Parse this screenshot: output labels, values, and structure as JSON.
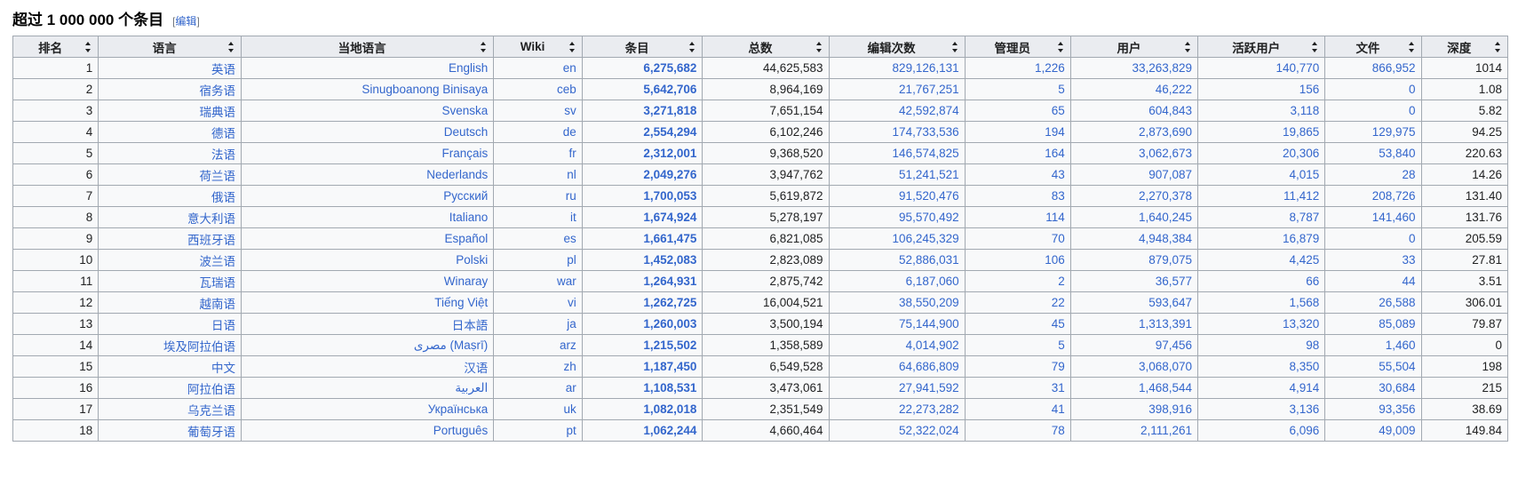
{
  "heading": {
    "title": "超过 1 000 000 个条目",
    "edit_open": "[",
    "edit_label": "编辑",
    "edit_close": "]"
  },
  "columns": [
    "排名",
    "语言",
    "当地语言",
    "Wiki",
    "条目",
    "总数",
    "编辑次数",
    "管理员",
    "用户",
    "活跃用户",
    "文件",
    "深度"
  ],
  "rows": [
    {
      "rank": "1",
      "language": "英语",
      "local": "English",
      "wiki": "en",
      "articles": "6,275,682",
      "total": "44,625,583",
      "edits": "829,126,131",
      "admins": "1,226",
      "users": "33,263,829",
      "active": "140,770",
      "files": "866,952",
      "depth": "1014"
    },
    {
      "rank": "2",
      "language": "宿务语",
      "local": "Sinugboanong Binisaya",
      "wiki": "ceb",
      "articles": "5,642,706",
      "total": "8,964,169",
      "edits": "21,767,251",
      "admins": "5",
      "users": "46,222",
      "active": "156",
      "files": "0",
      "depth": "1.08"
    },
    {
      "rank": "3",
      "language": "瑞典语",
      "local": "Svenska",
      "wiki": "sv",
      "articles": "3,271,818",
      "total": "7,651,154",
      "edits": "42,592,874",
      "admins": "65",
      "users": "604,843",
      "active": "3,118",
      "files": "0",
      "depth": "5.82"
    },
    {
      "rank": "4",
      "language": "德语",
      "local": "Deutsch",
      "wiki": "de",
      "articles": "2,554,294",
      "total": "6,102,246",
      "edits": "174,733,536",
      "admins": "194",
      "users": "2,873,690",
      "active": "19,865",
      "files": "129,975",
      "depth": "94.25"
    },
    {
      "rank": "5",
      "language": "法语",
      "local": "Français",
      "wiki": "fr",
      "articles": "2,312,001",
      "total": "9,368,520",
      "edits": "146,574,825",
      "admins": "164",
      "users": "3,062,673",
      "active": "20,306",
      "files": "53,840",
      "depth": "220.63"
    },
    {
      "rank": "6",
      "language": "荷兰语",
      "local": "Nederlands",
      "wiki": "nl",
      "articles": "2,049,276",
      "total": "3,947,762",
      "edits": "51,241,521",
      "admins": "43",
      "users": "907,087",
      "active": "4,015",
      "files": "28",
      "depth": "14.26"
    },
    {
      "rank": "7",
      "language": "俄语",
      "local": "Русский",
      "wiki": "ru",
      "articles": "1,700,053",
      "total": "5,619,872",
      "edits": "91,520,476",
      "admins": "83",
      "users": "2,270,378",
      "active": "11,412",
      "files": "208,726",
      "depth": "131.40"
    },
    {
      "rank": "8",
      "language": "意大利语",
      "local": "Italiano",
      "wiki": "it",
      "articles": "1,674,924",
      "total": "5,278,197",
      "edits": "95,570,492",
      "admins": "114",
      "users": "1,640,245",
      "active": "8,787",
      "files": "141,460",
      "depth": "131.76"
    },
    {
      "rank": "9",
      "language": "西班牙语",
      "local": "Español",
      "wiki": "es",
      "articles": "1,661,475",
      "total": "6,821,085",
      "edits": "106,245,329",
      "admins": "70",
      "users": "4,948,384",
      "active": "16,879",
      "files": "0",
      "depth": "205.59"
    },
    {
      "rank": "10",
      "language": "波兰语",
      "local": "Polski",
      "wiki": "pl",
      "articles": "1,452,083",
      "total": "2,823,089",
      "edits": "52,886,031",
      "admins": "106",
      "users": "879,075",
      "active": "4,425",
      "files": "33",
      "depth": "27.81"
    },
    {
      "rank": "11",
      "language": "瓦瑞语",
      "local": "Winaray",
      "wiki": "war",
      "articles": "1,264,931",
      "total": "2,875,742",
      "edits": "6,187,060",
      "admins": "2",
      "users": "36,577",
      "active": "66",
      "files": "44",
      "depth": "3.51"
    },
    {
      "rank": "12",
      "language": "越南语",
      "local": "Tiếng Việt",
      "wiki": "vi",
      "articles": "1,262,725",
      "total": "16,004,521",
      "edits": "38,550,209",
      "admins": "22",
      "users": "593,647",
      "active": "1,568",
      "files": "26,588",
      "depth": "306.01"
    },
    {
      "rank": "13",
      "language": "日语",
      "local": "日本語",
      "wiki": "ja",
      "articles": "1,260,003",
      "total": "3,500,194",
      "edits": "75,144,900",
      "admins": "45",
      "users": "1,313,391",
      "active": "13,320",
      "files": "85,089",
      "depth": "79.87"
    },
    {
      "rank": "14",
      "language": "埃及阿拉伯语",
      "local": "مصرى (Maṣrī)",
      "wiki": "arz",
      "articles": "1,215,502",
      "total": "1,358,589",
      "edits": "4,014,902",
      "admins": "5",
      "users": "97,456",
      "active": "98",
      "files": "1,460",
      "depth": "0"
    },
    {
      "rank": "15",
      "language": "中文",
      "local": "汉语",
      "wiki": "zh",
      "articles": "1,187,450",
      "total": "6,549,528",
      "edits": "64,686,809",
      "admins": "79",
      "users": "3,068,070",
      "active": "8,350",
      "files": "55,504",
      "depth": "198"
    },
    {
      "rank": "16",
      "language": "阿拉伯语",
      "local": "العربية",
      "wiki": "ar",
      "articles": "1,108,531",
      "total": "3,473,061",
      "edits": "27,941,592",
      "admins": "31",
      "users": "1,468,544",
      "active": "4,914",
      "files": "30,684",
      "depth": "215"
    },
    {
      "rank": "17",
      "language": "乌克兰语",
      "local": "Українська",
      "wiki": "uk",
      "articles": "1,082,018",
      "total": "2,351,549",
      "edits": "22,273,282",
      "admins": "41",
      "users": "398,916",
      "active": "3,136",
      "files": "93,356",
      "depth": "38.69"
    },
    {
      "rank": "18",
      "language": "葡萄牙语",
      "local": "Português",
      "wiki": "pt",
      "articles": "1,062,244",
      "total": "4,660,464",
      "edits": "52,322,024",
      "admins": "78",
      "users": "2,111,261",
      "active": "6,096",
      "files": "49,009",
      "depth": "149.84"
    }
  ]
}
